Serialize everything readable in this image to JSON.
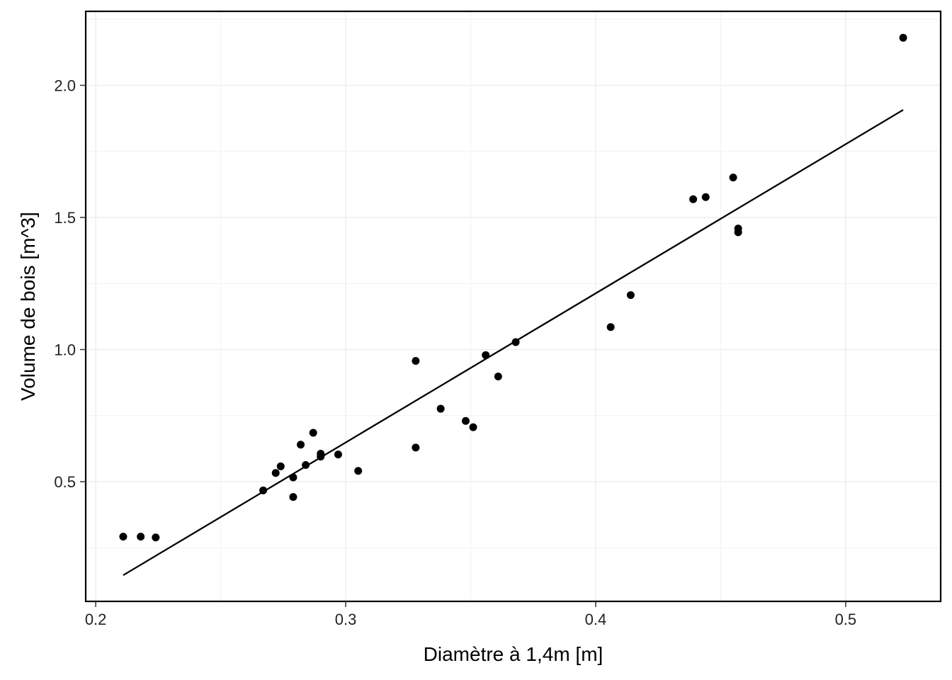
{
  "chart_data": {
    "type": "scatter",
    "xlabel": "Diamètre à 1,4m  [m]",
    "ylabel": "Volume de bois  [m^3]",
    "xlim": [
      0.196,
      0.538
    ],
    "ylim": [
      0.047,
      2.28
    ],
    "grid": true,
    "x_ticks": [
      0.2,
      0.3,
      0.4,
      0.5
    ],
    "x_tick_labels": [
      "0.2",
      "0.3",
      "0.4",
      "0.5"
    ],
    "y_ticks": [
      0.5,
      1.0,
      1.5,
      2.0
    ],
    "y_tick_labels": [
      "0.5",
      "1.0",
      "1.5",
      "2.0"
    ],
    "points": [
      {
        "x": 0.211,
        "y": 0.292
      },
      {
        "x": 0.218,
        "y": 0.292
      },
      {
        "x": 0.224,
        "y": 0.289
      },
      {
        "x": 0.267,
        "y": 0.467
      },
      {
        "x": 0.272,
        "y": 0.533
      },
      {
        "x": 0.274,
        "y": 0.558
      },
      {
        "x": 0.279,
        "y": 0.442
      },
      {
        "x": 0.279,
        "y": 0.516
      },
      {
        "x": 0.282,
        "y": 0.64
      },
      {
        "x": 0.284,
        "y": 0.563
      },
      {
        "x": 0.287,
        "y": 0.685
      },
      {
        "x": 0.29,
        "y": 0.595
      },
      {
        "x": 0.29,
        "y": 0.606
      },
      {
        "x": 0.297,
        "y": 0.603
      },
      {
        "x": 0.305,
        "y": 0.541
      },
      {
        "x": 0.328,
        "y": 0.957
      },
      {
        "x": 0.328,
        "y": 0.629
      },
      {
        "x": 0.338,
        "y": 0.776
      },
      {
        "x": 0.348,
        "y": 0.73
      },
      {
        "x": 0.351,
        "y": 0.706
      },
      {
        "x": 0.356,
        "y": 0.979
      },
      {
        "x": 0.361,
        "y": 0.898
      },
      {
        "x": 0.368,
        "y": 1.028
      },
      {
        "x": 0.406,
        "y": 1.085
      },
      {
        "x": 0.414,
        "y": 1.206
      },
      {
        "x": 0.439,
        "y": 1.569
      },
      {
        "x": 0.444,
        "y": 1.577
      },
      {
        "x": 0.455,
        "y": 1.651
      },
      {
        "x": 0.457,
        "y": 1.458
      },
      {
        "x": 0.457,
        "y": 1.444
      },
      {
        "x": 0.523,
        "y": 2.18
      }
    ],
    "fit_line": {
      "x": [
        0.211,
        0.523
      ],
      "y": [
        0.146,
        1.907
      ]
    }
  }
}
